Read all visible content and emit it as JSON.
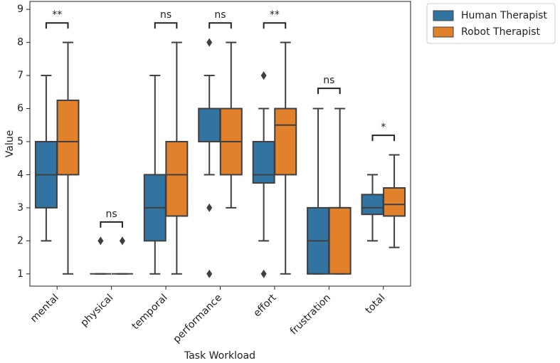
{
  "chart_data": {
    "type": "box",
    "x_label": "Task Workload",
    "y_label": "Value",
    "categories": [
      "mental",
      "physical",
      "temporal",
      "performance",
      "effort",
      "frustration",
      "total"
    ],
    "ylim": [
      0.63,
      9.24
    ],
    "yticks": [
      1,
      2,
      3,
      4,
      5,
      6,
      7,
      8,
      9
    ],
    "legend_position": "outside-upper-right",
    "series": [
      {
        "name": "Human Therapist",
        "color": "#3274a1",
        "boxes": [
          {
            "whislo": 2,
            "q1": 3,
            "med": 4,
            "q3": 5,
            "whishi": 7,
            "fliers": []
          },
          {
            "whislo": 1,
            "q1": 1,
            "med": 1,
            "q3": 1,
            "whishi": 1,
            "fliers": [
              2
            ]
          },
          {
            "whislo": 1,
            "q1": 2,
            "med": 3,
            "q3": 4,
            "whishi": 7,
            "fliers": []
          },
          {
            "whislo": 4,
            "q1": 5,
            "med": 6,
            "q3": 6,
            "whishi": 7,
            "fliers": [
              8,
              3,
              1
            ]
          },
          {
            "whislo": 2,
            "q1": 3.75,
            "med": 4,
            "q3": 5,
            "whishi": 6,
            "fliers": [
              7,
              1
            ]
          },
          {
            "whislo": 1,
            "q1": 1,
            "med": 2,
            "q3": 3,
            "whishi": 6,
            "fliers": []
          },
          {
            "whislo": 2,
            "q1": 2.8,
            "med": 3,
            "q3": 3.4,
            "whishi": 4,
            "fliers": []
          }
        ]
      },
      {
        "name": "Robot Therapist",
        "color": "#e1812c",
        "boxes": [
          {
            "whislo": 1,
            "q1": 4,
            "med": 5,
            "q3": 6.25,
            "whishi": 8,
            "fliers": []
          },
          {
            "whislo": 1,
            "q1": 1,
            "med": 1,
            "q3": 1,
            "whishi": 1,
            "fliers": [
              2
            ]
          },
          {
            "whislo": 1,
            "q1": 2.75,
            "med": 4,
            "q3": 5,
            "whishi": 8,
            "fliers": []
          },
          {
            "whislo": 3,
            "q1": 4,
            "med": 5,
            "q3": 6,
            "whishi": 8,
            "fliers": []
          },
          {
            "whislo": 1,
            "q1": 4,
            "med": 5.5,
            "q3": 6,
            "whishi": 8,
            "fliers": []
          },
          {
            "whislo": 1,
            "q1": 1,
            "med": 3,
            "q3": 3,
            "whishi": 6,
            "fliers": []
          },
          {
            "whislo": 1.8,
            "q1": 2.75,
            "med": 3.1,
            "q3": 3.6,
            "whishi": 4.6,
            "fliers": []
          }
        ]
      }
    ],
    "annotations": [
      {
        "text": "**",
        "y": 8.59
      },
      {
        "text": "ns",
        "y": 2.57
      },
      {
        "text": "ns",
        "y": 8.59
      },
      {
        "text": "ns",
        "y": 8.59
      },
      {
        "text": "**",
        "y": 8.59
      },
      {
        "text": "ns",
        "y": 6.61
      },
      {
        "text": "*",
        "y": 5.19
      }
    ]
  }
}
